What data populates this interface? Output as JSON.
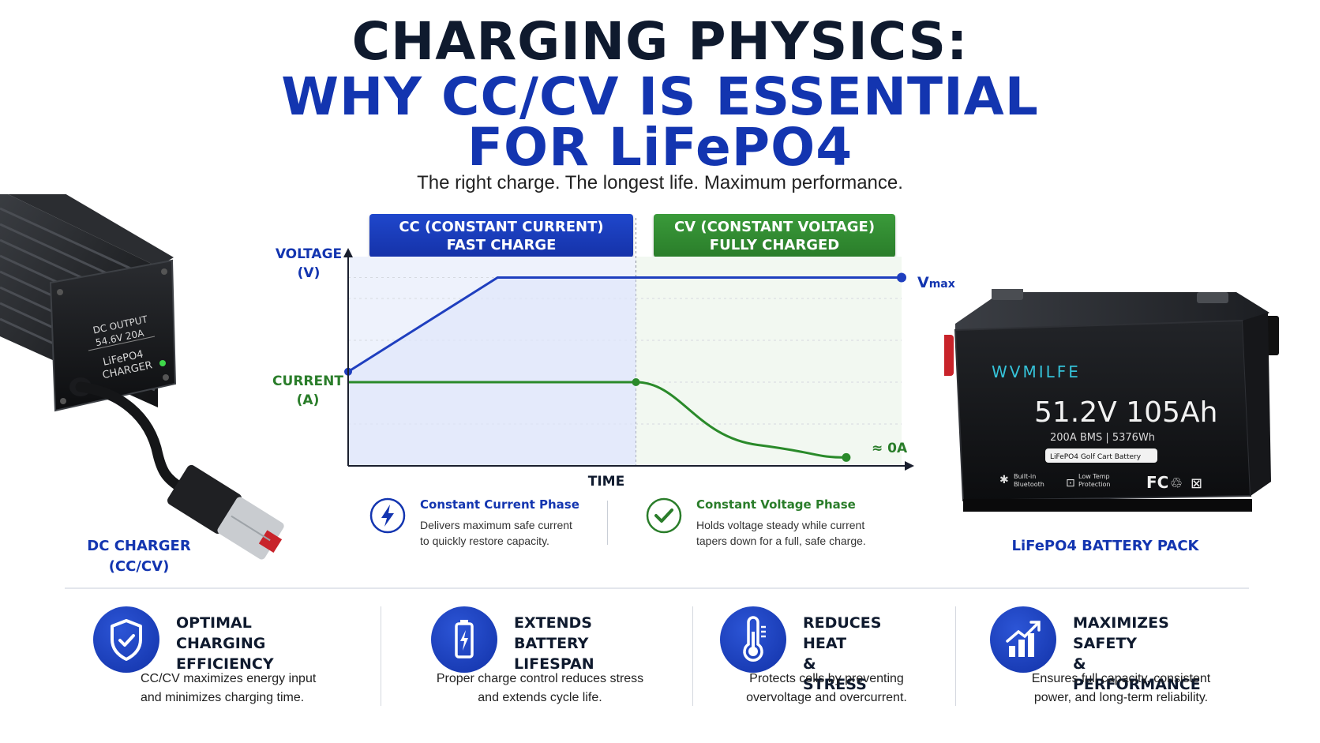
{
  "header": {
    "title_line1": "CHARGING PHYSICS:",
    "title_line2": "WHY CC/CV IS ESSENTIAL",
    "title_line3": "FOR LiFePO4",
    "subtitle": "The right charge. The longest life. Maximum performance."
  },
  "banners": {
    "cc_line1": "CC (CONSTANT CURRENT)",
    "cc_line2": "FAST CHARGE",
    "cv_line1": "CV (CONSTANT VOLTAGE)",
    "cv_line2": "FULLY CHARGED"
  },
  "chart_data": {
    "type": "line",
    "title": "",
    "xlabel": "TIME",
    "ylabels": [
      "VOLTAGE (V)",
      "CURRENT (A)"
    ],
    "annotations": [
      "Vmax",
      "≈ 0A"
    ],
    "grid": true,
    "series": [
      {
        "name": "VOLTAGE (V)",
        "color": "#1f3fbf",
        "x": [
          0,
          0.27,
          0.52,
          1.0
        ],
        "values": [
          0.45,
          0.9,
          0.9,
          0.9
        ]
      },
      {
        "name": "CURRENT (A)",
        "color": "#2a8a2a",
        "x": [
          0,
          0.52,
          0.6,
          0.74,
          0.9
        ],
        "values": [
          0.4,
          0.4,
          0.3,
          0.1,
          0.04
        ]
      }
    ],
    "phase_split_x": 0.52
  },
  "chart_labels": {
    "voltage_line1": "VOLTAGE",
    "voltage_line2": "(V)",
    "current_line1": "CURRENT",
    "current_line2": "(A)",
    "time": "TIME",
    "vmax_main": "V",
    "vmax_sub": "max",
    "zero": "≈ 0A"
  },
  "phase_notes": {
    "cc_title": "Constant Current Phase",
    "cc_text_1": "Delivers maximum safe current",
    "cc_text_2": "to quickly restore capacity.",
    "cv_title": "Constant Voltage Phase",
    "cv_text_1": "Holds voltage steady while current",
    "cv_text_2": "tapers down for a full, safe charge."
  },
  "charger": {
    "label_1": "DC OUTPUT",
    "label_2": "54.6V 20A",
    "label_3": "LiFePO4",
    "label_4": "CHARGER",
    "caption_1": "DC CHARGER",
    "caption_2": "(CC/CV)"
  },
  "battery": {
    "brand": "WVMILFE",
    "spec_main": "51.2V 105Ah",
    "spec_sub": "200A BMS | 5376Wh",
    "spec_tag": "LiFePO4 Golf Cart Battery",
    "feature_1a": "Built-in",
    "feature_1b": "Bluetooth",
    "feature_2a": "Low Temp",
    "feature_2b": "Protection",
    "cert": "FC",
    "caption": "LiFePO4 BATTERY PACK"
  },
  "features": [
    {
      "title": "OPTIMAL CHARGING\nEFFICIENCY",
      "text": "CC/CV maximizes energy input\nand minimizes charging time.",
      "icon": "shield-check-icon"
    },
    {
      "title": "EXTENDS BATTERY\nLIFESPAN",
      "text": "Proper charge control reduces stress\nand extends cycle life.",
      "icon": "battery-icon"
    },
    {
      "title": "REDUCES HEAT\n& STRESS",
      "text": "Protects cells by preventing\novervoltage and overcurrent.",
      "icon": "thermometer-icon"
    },
    {
      "title": "MAXIMIZES SAFETY\n& PERFORMANCE",
      "text": "Ensures full capacity, consistent\npower, and long-term reliability.",
      "icon": "growth-chart-icon"
    }
  ],
  "colors": {
    "primary_blue": "#1335b0",
    "primary_green": "#2a7d2a",
    "title_dark": "#0f1a2e"
  }
}
